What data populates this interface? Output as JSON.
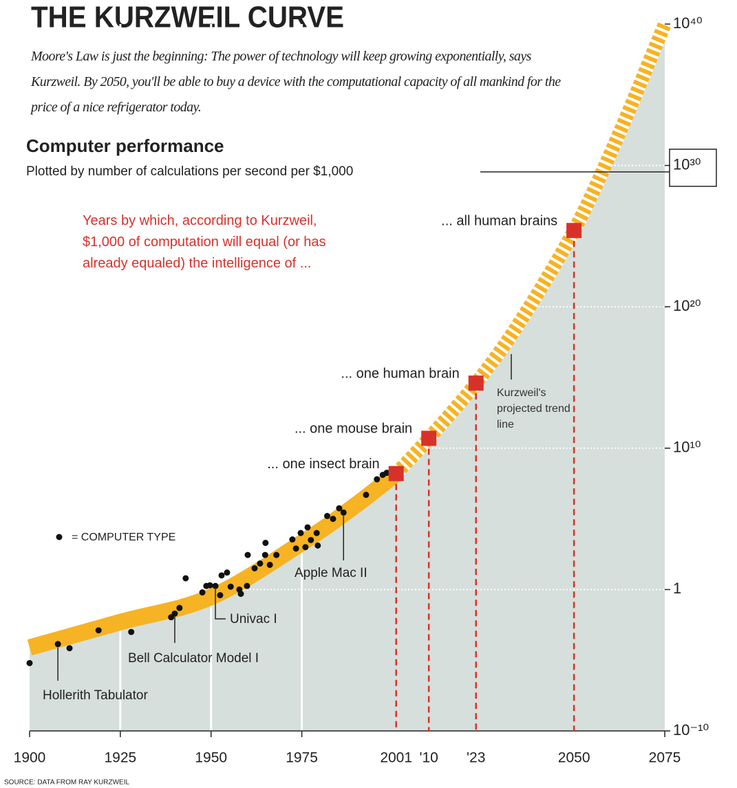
{
  "chart_data": {
    "type": "line",
    "title": "THE KURZWEIL CURVE",
    "subtitle": "Moore's Law is just the beginning: The power of technology will keep growing exponentially, says Kurzweil. By 2050, you'll be able to buy a device with the computational capacity of all mankind for the price of a nice refrigerator today.",
    "y_title": "Computer performance",
    "y_subtitle": "Plotted by number of calculations per second per $1,000",
    "log_y": true,
    "xlim": [
      1900,
      2075
    ],
    "ylim": [
      1e-10,
      1e+40
    ],
    "xticks": [
      1900,
      1925,
      1950,
      1975,
      2075
    ],
    "yticks": [
      {
        "value": 1e-10,
        "label": "10⁻¹⁰"
      },
      1,
      {
        "value": 10000000000.0,
        "label": "10¹⁰"
      },
      {
        "value": 1e+20,
        "label": "10²⁰"
      },
      {
        "value": 1e+30,
        "label": "10³⁰"
      },
      {
        "value": 1e+40,
        "label": "10⁴⁰"
      }
    ],
    "grid": true,
    "area_color": "#d6dfdb",
    "trend": {
      "name": "Kurzweil's projected trend line",
      "color": "#f6b323",
      "x": [
        1900,
        1925,
        1950,
        1975,
        1990,
        2001,
        2010,
        2023,
        2035,
        2050,
        2062,
        2075
      ],
      "values": [
        8e-05,
        0.005,
        0.3,
        2000,
        1000000.0,
        160000000.0,
        50000000000.0,
        400000000000000.0,
        8e+18,
        2.5e+25,
        1e+32,
        1e+40
      ],
      "projected_from": 2001
    },
    "series": [
      {
        "name": "= COMPUTER TYPE",
        "color": "#111111",
        "x": [
          1900,
          1907.8,
          1911,
          1919,
          1928,
          1939,
          1940,
          1941.3,
          1943,
          1947.6,
          1948.7,
          1949.7,
          1951.2,
          1952.5,
          1952.9,
          1954.4,
          1955.4,
          1957.8,
          1958.2,
          1959.9,
          1960.1,
          1962,
          1963.5,
          1965,
          1964.9,
          1966.2,
          1968,
          1972.4,
          1973.4,
          1974.7,
          1976,
          1976.6,
          1977.5,
          1979.1,
          1979.4,
          1982,
          1983.6,
          1985.3,
          1986.5,
          1992.7,
          1995.7,
          1997.3,
          1998.4
        ],
        "values": [
          6.3e-06,
          0.00014,
          7.1e-05,
          0.0013,
          0.001,
          0.011,
          0.02,
          0.05,
          6.3,
          0.63,
          1.8,
          2,
          1.8,
          0.4,
          10,
          16,
          1.6,
          1,
          0.5,
          1.8,
          280,
          32,
          70,
          2000,
          280,
          56,
          280,
          3500,
          800,
          10000.0,
          1000,
          25000.0,
          3200,
          10000.0,
          1300,
          160000.0,
          100000.0,
          560000.0,
          280000.0,
          5000000.0,
          63000000.0,
          130000000.0,
          180000000.0
        ]
      }
    ],
    "annotations": [
      {
        "text": "Hollerith Tabulator",
        "x": 1907.8,
        "y": 0.00014
      },
      {
        "text": "Bell Calculator Model I",
        "x": 1940,
        "y": 0.02
      },
      {
        "text": "Univac I",
        "x": 1951.2,
        "y": 1.8
      },
      {
        "text": "Apple Mac II",
        "x": 1986.5,
        "y": 280000.0
      }
    ],
    "milestones": {
      "note": "Years by which, according to Kurzweil, $1,000 of computation will equal (or has already equaled) the intelligence of ...",
      "color": "#d8312a",
      "x": [
        2001,
        2010,
        2023,
        2050
      ],
      "x_labels": [
        "2001",
        "'10",
        "'23",
        "2050"
      ],
      "values": [
        160000000.0,
        50000000000.0,
        400000000000000.0,
        2.5e+25
      ],
      "labels": [
        "... one insect brain",
        "... one mouse brain",
        "... one human brain",
        "... all human brains"
      ]
    },
    "source": "SOURCE: DATA FROM RAY KURZWEIL"
  }
}
